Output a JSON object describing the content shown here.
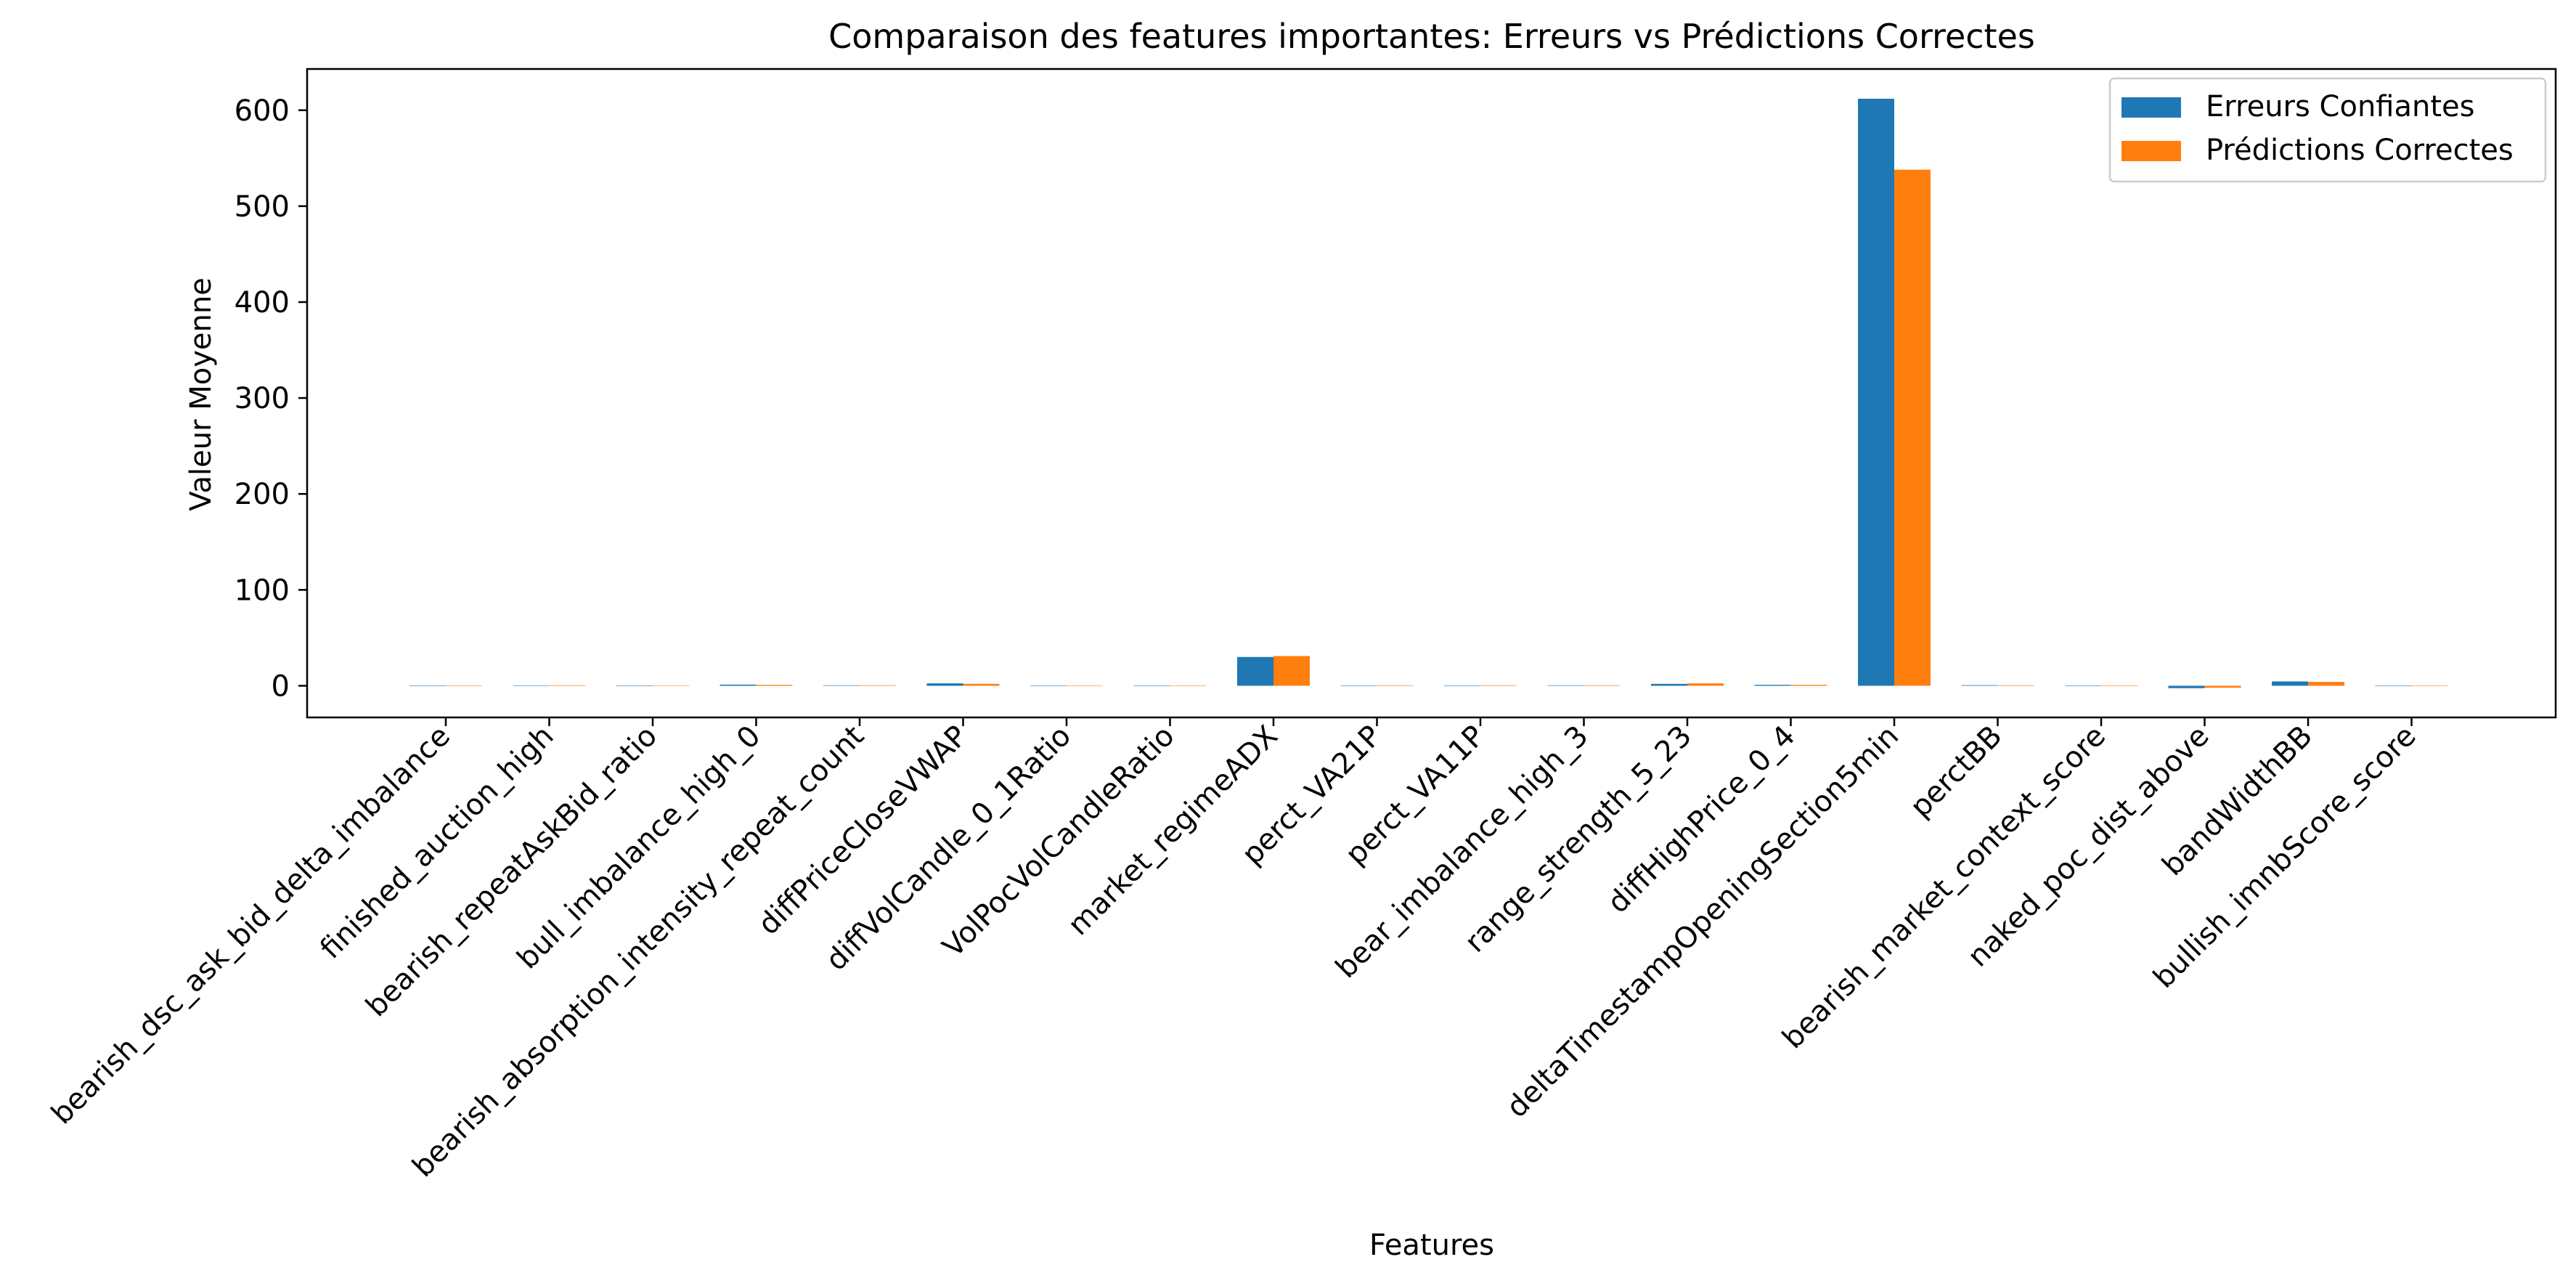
{
  "chart_data": {
    "type": "bar",
    "title": "Comparaison des features importantes: Erreurs vs Prédictions Correctes",
    "xlabel": "Features",
    "ylabel": "Valeur Moyenne",
    "ylim": [
      -33,
      643
    ],
    "yticks": [
      0,
      100,
      200,
      300,
      400,
      500,
      600
    ],
    "grid": false,
    "legend_position": "top-right",
    "categories": [
      "bearish_dsc_ask_bid_delta_imbalance",
      "finished_auction_high",
      "bearish_repeatAskBid_ratio",
      "bull_imbalance_high_0",
      "bearish_absorption_intensity_repeat_count",
      "diffPriceCloseVWAP",
      "diffVolCandle_0_1Ratio",
      "VolPocVolCandleRatio",
      "market_regimeADX",
      "perct_VA21P",
      "perct_VA11P",
      "bear_imbalance_high_3",
      "range_strength_5_23",
      "diffHighPrice_0_4",
      "deltaTimestampOpeningSection5min",
      "perctBB",
      "bearish_market_context_score",
      "naked_poc_dist_above",
      "bandWidthBB",
      "bullish_imnbScore_score"
    ],
    "series": [
      {
        "name": "Erreurs Confiantes",
        "color": "#1f77b4",
        "values": [
          0.05,
          0.4,
          0.3,
          1.2,
          0.5,
          2.5,
          0.1,
          0.1,
          30,
          0.2,
          0.2,
          0.5,
          2.0,
          1.0,
          612,
          0.6,
          0.1,
          -2.5,
          4.5,
          0.1
        ]
      },
      {
        "name": "Prédictions Correctes",
        "color": "#ff7f0e",
        "values": [
          0.05,
          0.5,
          0.4,
          1.0,
          0.5,
          2.0,
          0.1,
          0.1,
          31,
          0.5,
          0.5,
          0.5,
          2.5,
          1.0,
          538,
          0.5,
          0.1,
          -2.0,
          4.0,
          0.1
        ]
      }
    ]
  }
}
